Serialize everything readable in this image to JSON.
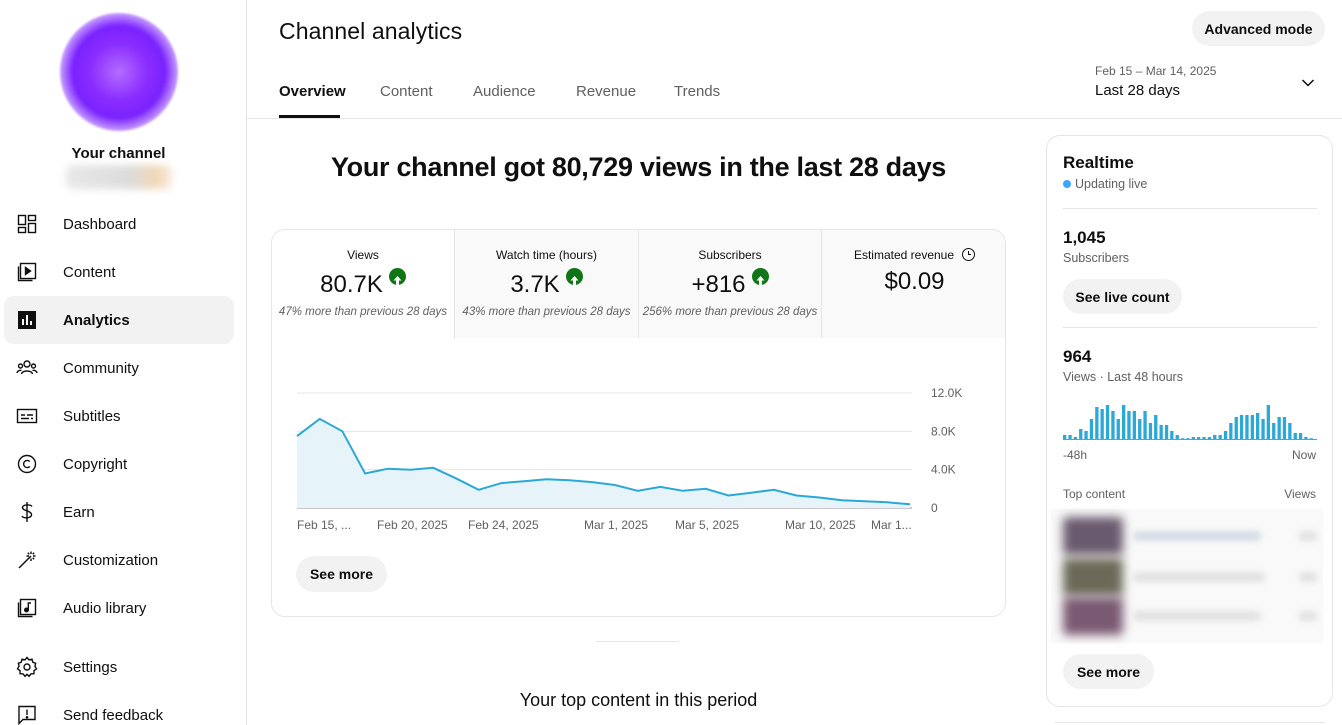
{
  "sidebar": {
    "channel_label": "Your channel",
    "items": [
      {
        "label": "Dashboard",
        "icon": "dashboard-icon"
      },
      {
        "label": "Content",
        "icon": "content-icon"
      },
      {
        "label": "Analytics",
        "icon": "analytics-icon",
        "active": true
      },
      {
        "label": "Community",
        "icon": "community-icon"
      },
      {
        "label": "Subtitles",
        "icon": "subtitles-icon"
      },
      {
        "label": "Copyright",
        "icon": "copyright-icon"
      },
      {
        "label": "Earn",
        "icon": "earn-icon"
      },
      {
        "label": "Customization",
        "icon": "customization-icon"
      },
      {
        "label": "Audio library",
        "icon": "audio-library-icon"
      }
    ],
    "footer_items": [
      {
        "label": "Settings",
        "icon": "gear-icon"
      },
      {
        "label": "Send feedback",
        "icon": "feedback-icon"
      }
    ]
  },
  "header": {
    "title": "Channel analytics",
    "advanced_mode_label": "Advanced mode",
    "tabs": [
      {
        "label": "Overview",
        "active": true
      },
      {
        "label": "Content"
      },
      {
        "label": "Audience"
      },
      {
        "label": "Revenue"
      },
      {
        "label": "Trends"
      }
    ],
    "date_range": "Feb 15 – Mar 14, 2025",
    "date_period": "Last 28 days"
  },
  "main": {
    "headline": "Your channel got 80,729 views in the last 28 days",
    "metrics": [
      {
        "label": "Views",
        "value": "80.7K",
        "trend": "up",
        "sub": "47% more than previous 28 days"
      },
      {
        "label": "Watch time (hours)",
        "value": "3.7K",
        "trend": "up",
        "sub": "43% more than previous 28 days"
      },
      {
        "label": "Subscribers",
        "value": "+816",
        "trend": "up",
        "sub": "256% more than previous 28 days"
      },
      {
        "label": "Estimated revenue",
        "value": "$0.09",
        "trend": "none",
        "sub": ""
      }
    ],
    "see_more_label": "See more",
    "top_content_title": "Your top content in this period"
  },
  "chart_data": {
    "type": "area",
    "x_tick_labels": [
      "Feb 15, ...",
      "Feb 20, 2025",
      "Feb 24, 2025",
      "Mar 1, 2025",
      "Mar 5, 2025",
      "Mar 10, 2025",
      "Mar 1..."
    ],
    "y_tick_labels": [
      "12.0K",
      "8.0K",
      "4.0K",
      "0"
    ],
    "ylim": [
      0,
      12000
    ],
    "values": [
      7500,
      9300,
      8000,
      3600,
      4100,
      4000,
      4200,
      3100,
      1900,
      2600,
      2800,
      3000,
      2900,
      2700,
      2400,
      1800,
      2200,
      1800,
      2000,
      1300,
      1600,
      1900,
      1300,
      1100,
      800,
      700,
      600,
      400
    ],
    "color": "#2ba8d6",
    "fill": "#e6f4fa",
    "grid": true
  },
  "realtime": {
    "title": "Realtime",
    "status": "Updating live",
    "subscribers_value": "1,045",
    "subscribers_label": "Subscribers",
    "live_count_label": "See live count",
    "views_value": "964",
    "views_label": "Views · Last 48 hours",
    "axis_left": "-48h",
    "axis_right": "Now",
    "bars": [
      2,
      2,
      1,
      5,
      4,
      10,
      16,
      15,
      17,
      14,
      10,
      17,
      14,
      14,
      10,
      14,
      8,
      12,
      7,
      7,
      4,
      2,
      0,
      0,
      1,
      1,
      1,
      1,
      2,
      2,
      4,
      8,
      11,
      12,
      12,
      12,
      13,
      10,
      17,
      8,
      11,
      11,
      8,
      3,
      3,
      1,
      0
    ],
    "top_content_label": "Top content",
    "top_content_views_label": "Views",
    "see_more_label": "See more",
    "accent": "#2ba8d6"
  }
}
